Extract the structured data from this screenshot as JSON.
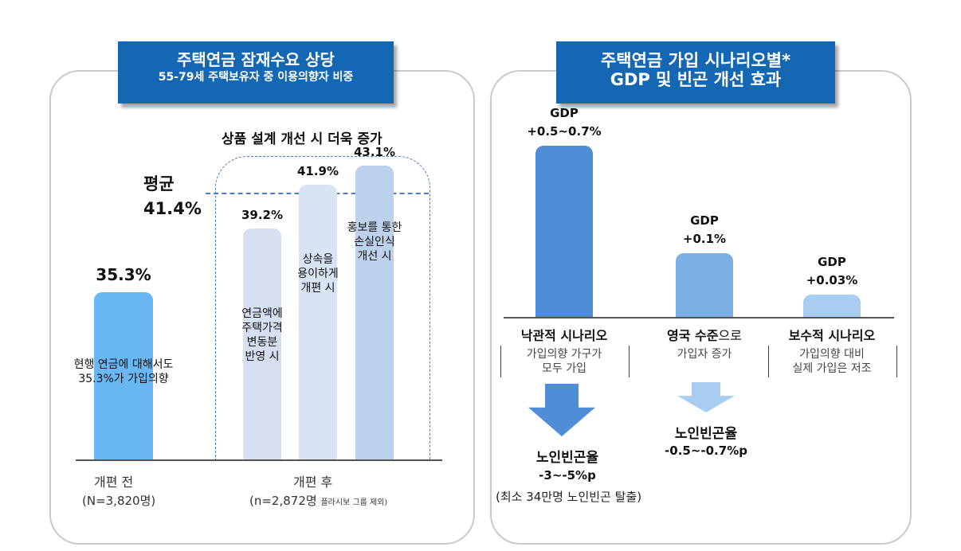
{
  "left_panel": {
    "title": "주택연금 잠재수요 상당",
    "subtitle": "55-79세 주택보유자 중 이용의향자 비중",
    "annotation": "상품 설계 개선 시 더욱 증가",
    "average_label": "평균",
    "average_value": "41.4%",
    "group_before": "개편 전",
    "group_before_n": "(N=3,820명)",
    "group_after": "개편 후",
    "group_after_n": "(n=2,872명",
    "group_after_note": "플라시보 그룹 제외)"
  },
  "right_panel": {
    "title_line1": "주택연금 가입 시나리오별*",
    "title_line2": "GDP 및 빈곤 개선 효과"
  },
  "chart_data": [
    {
      "type": "bar",
      "title": "주택연금 잠재수요 상당",
      "subtitle": "55-79세 주택보유자 중 이용의향자 비중",
      "unit": "%",
      "ylim": [
        0,
        45
      ],
      "reference_line": {
        "label": "평균",
        "value": 41.4,
        "text": "41.4%"
      },
      "categories": [
        "현행",
        "주택가격 변동분 반영",
        "상속 용이",
        "손실인식 개선"
      ],
      "values": [
        35.3,
        39.2,
        41.9,
        43.1
      ],
      "value_labels": [
        "35.3%",
        "39.2%",
        "41.9%",
        "43.1%"
      ],
      "bar_texts": [
        [
          "현행 연금에 대해서도",
          "35.3%가 가입의향"
        ],
        [
          "연금액에",
          "주택가격",
          "변동분",
          "반영 시"
        ],
        [
          "상속을",
          "용이하게",
          "개편 시"
        ],
        [
          "홍보를 통한",
          "손실인식",
          "개선 시"
        ]
      ],
      "colors": [
        "#69b7f3",
        "#d6def2",
        "#d6e4f4",
        "#bcd1ec"
      ]
    },
    {
      "type": "bar",
      "title": "주택연금 가입 시나리오별* GDP 및 빈곤 개선 효과",
      "unit": "%p",
      "ylim": [
        0,
        0.7
      ],
      "categories": [
        "낙관적 시나리오",
        "영국 수준으로 가입자 증가",
        "보수적 시나리오"
      ],
      "values": [
        0.6,
        0.1,
        0.03
      ],
      "gdp_title": "GDP",
      "value_labels": [
        "+0.5~0.7%",
        "+0.1%",
        "+0.03%"
      ],
      "category_labels": [
        "낙관적 시나리오",
        "영국 수준",
        "보수적 시나리오"
      ],
      "category_label_suffix": [
        "",
        "으로",
        ""
      ],
      "category_notes": [
        [
          "가입의향 가구가",
          "모두 가입"
        ],
        [
          "가입자 증가"
        ],
        [
          "가입의향 대비",
          "실제 가입은 저조"
        ]
      ],
      "poverty_title": "노인빈곤율",
      "poverty_effects": [
        "-3~-5%p",
        "-0.5~-0.7%p"
      ],
      "poverty_note": "(최소 34만명 노인빈곤 탈출)",
      "colors": [
        "#4f8ed6",
        "#7ab0e6",
        "#a9cdf0"
      ]
    }
  ]
}
